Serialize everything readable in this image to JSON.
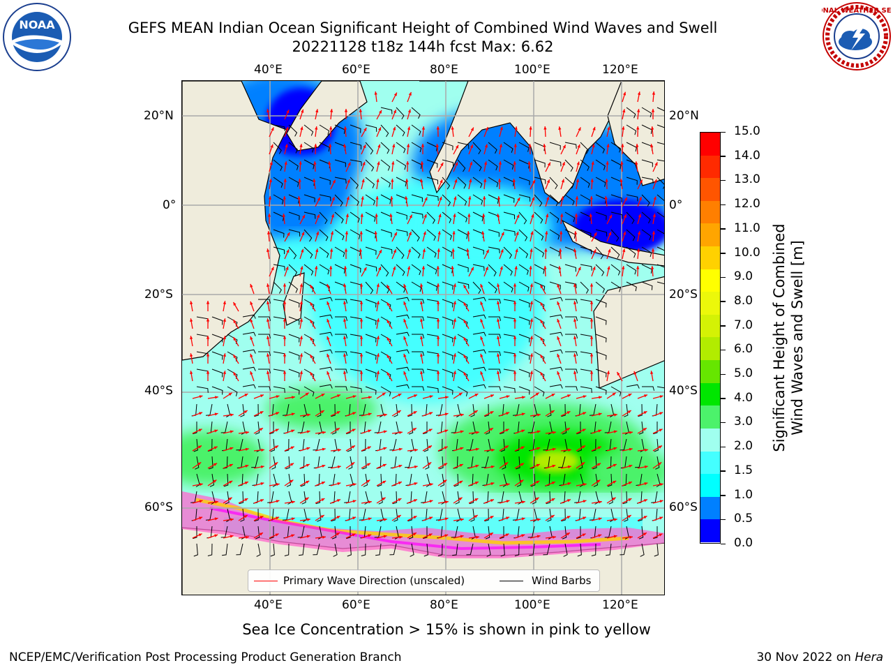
{
  "title": {
    "line1": "GEFS MEAN Indian Ocean Significant Height of Combined Wind Waves and Swell",
    "line2": "20221128 t18z 144h fcst   Max: 6.62"
  },
  "logos": {
    "left": "noaa-logo",
    "left_text": "NOAA",
    "right": "nws-logo",
    "right_text": "NATIONAL WEATHER SERVICE"
  },
  "map": {
    "lon_labels": [
      "40°E",
      "60°E",
      "80°E",
      "100°E",
      "120°E"
    ],
    "lat_labels_left": [
      "20°N",
      "0°",
      "20°S",
      "40°S",
      "60°S"
    ],
    "lat_labels_right": [
      "20°N",
      "0°",
      "20°S",
      "40°S",
      "60°S"
    ],
    "lon_range": [
      20,
      130
    ],
    "lat_range": [
      -72,
      28
    ],
    "colors": {
      "land": "#efecdc",
      "coast": "#000000",
      "grid": "#a9a9a9",
      "arrow": "#ff0000",
      "barb": "#000000"
    }
  },
  "colorbar": {
    "ticks": [
      "15.0",
      "14.0",
      "13.0",
      "12.0",
      "11.0",
      "10.0",
      "9.0",
      "8.0",
      "7.0",
      "6.0",
      "5.0",
      "4.0",
      "3.0",
      "2.0",
      "1.5",
      "1.0",
      "0.5",
      "0.0"
    ],
    "colors_top_to_bottom": [
      "#ff0000",
      "#ff2a00",
      "#ff5500",
      "#ff7f00",
      "#ffa500",
      "#ffd100",
      "#ffff00",
      "#ecf80a",
      "#d4f205",
      "#b2ec00",
      "#66e600",
      "#00e600",
      "#4cf26b",
      "#a0ffef",
      "#44ffff",
      "#00ffff",
      "#0080ff",
      "#0000ff"
    ],
    "label_line1": "Significant Height of Combined",
    "label_line2": "Wind Waves and Swell [m]"
  },
  "legend": {
    "item1": {
      "label": "Primary Wave Direction (unscaled)",
      "color": "#ff0000"
    },
    "item2": {
      "label": "Wind Barbs",
      "color": "#000000"
    }
  },
  "caption": "Sea Ice Concentration > 15% is shown in pink to yellow",
  "footer": {
    "left": "NCEP/EMC/Verification Post Processing Product Generation Branch",
    "right_prefix": "30 Nov 2022 on ",
    "right_host": "Hera"
  }
}
